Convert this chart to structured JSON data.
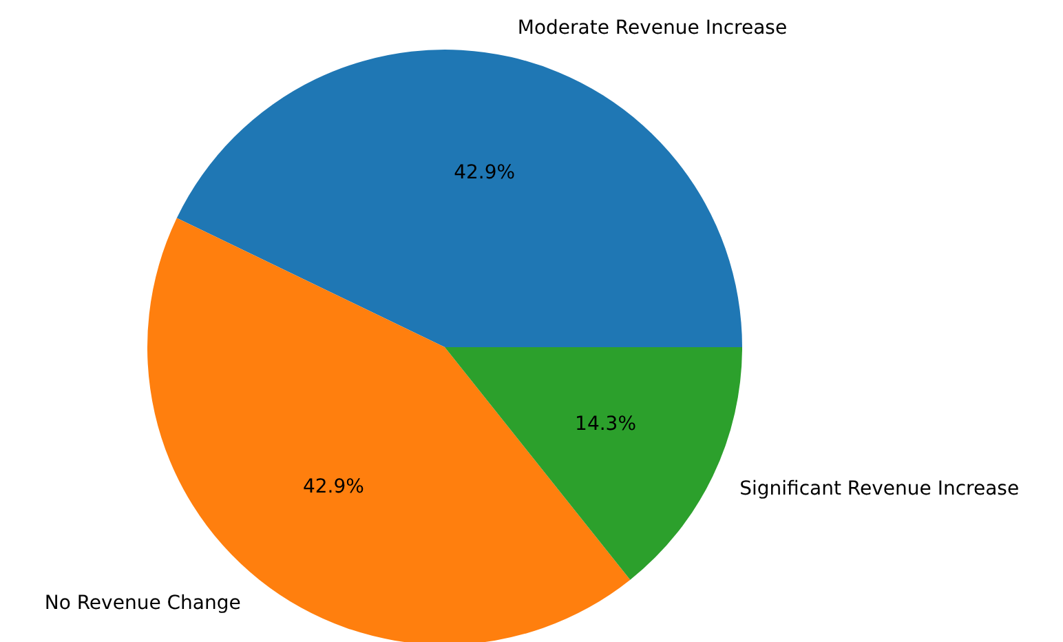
{
  "chart_data": {
    "type": "pie",
    "categories": [
      "Moderate Revenue Increase",
      "No Revenue Change",
      "Significant Revenue Increase"
    ],
    "values": [
      42.9,
      42.9,
      14.3
    ],
    "colors": [
      "#1f77b4",
      "#ff7f0e",
      "#2ca02c"
    ],
    "value_labels": [
      "42.9%",
      "42.9%",
      "14.3%"
    ]
  }
}
